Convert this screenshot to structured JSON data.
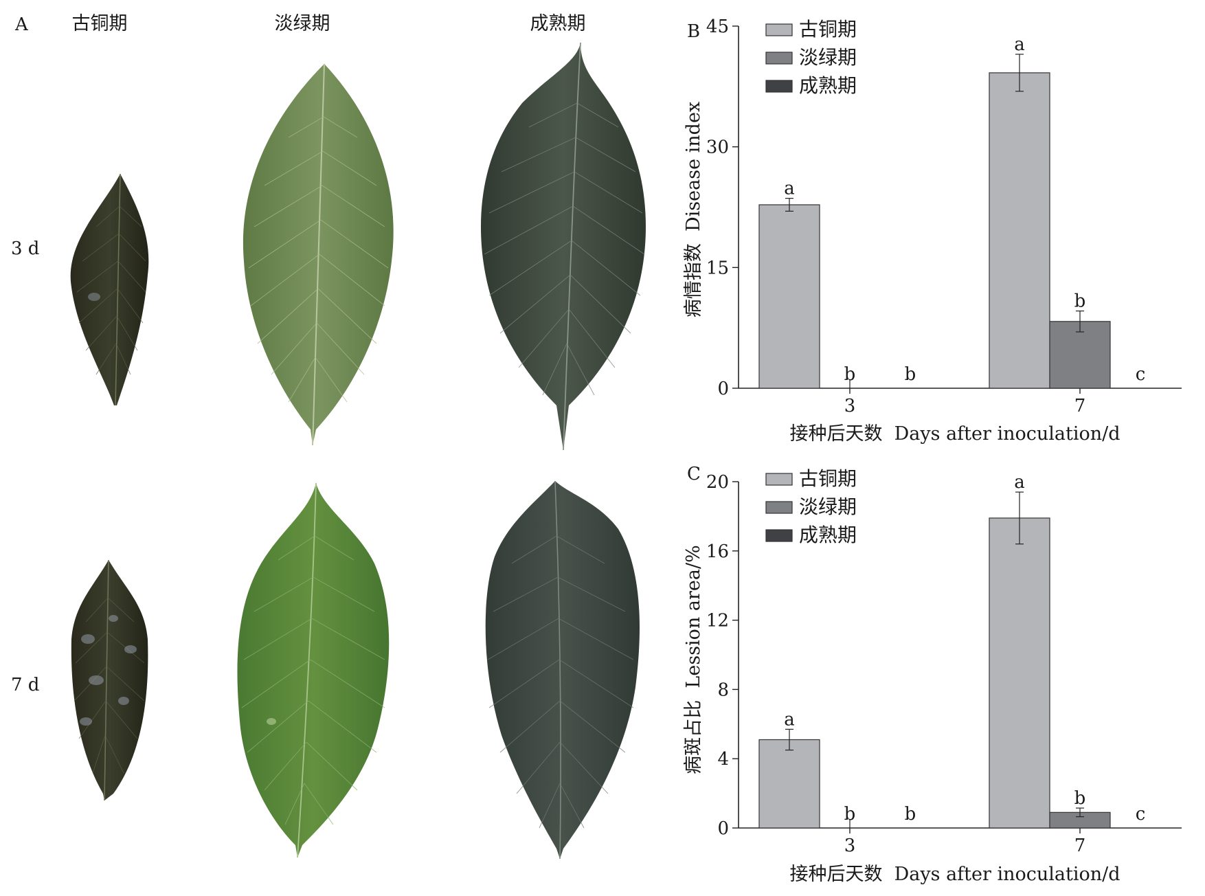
{
  "panelA": {
    "label": "A",
    "columns": [
      "古铜期",
      "淡绿期",
      "成熟期"
    ],
    "rows": [
      "3 d",
      "7 d"
    ]
  },
  "chartB_text": {
    "panel_label": "B"
  },
  "chartC_text": {
    "panel_label": "C"
  },
  "chart_data": [
    {
      "type": "bar",
      "panel": "B",
      "title": "",
      "categories": [
        "3",
        "7"
      ],
      "series": [
        {
          "name": "古铜期",
          "color": "#b4b5b8",
          "values": [
            22.8,
            39.2
          ],
          "errors": [
            0.8,
            2.3
          ],
          "letters": [
            "a",
            "a"
          ]
        },
        {
          "name": "淡绿期",
          "color": "#7f8084",
          "values": [
            0,
            8.3
          ],
          "errors": [
            0,
            1.3
          ],
          "letters": [
            "b",
            "b"
          ]
        },
        {
          "name": "成熟期",
          "color": "#404145",
          "values": [
            0,
            0
          ],
          "errors": [
            0,
            0
          ],
          "letters": [
            "b",
            "c"
          ]
        }
      ],
      "xlabel": "接种后天数  Days after inoculation/d",
      "ylabel": "病情指数  Disease index",
      "ylim": [
        0,
        45
      ],
      "yticks": [
        0,
        15,
        30,
        45
      ],
      "grid": false,
      "legend": "top-left"
    },
    {
      "type": "bar",
      "panel": "C",
      "title": "",
      "categories": [
        "3",
        "7"
      ],
      "series": [
        {
          "name": "古铜期",
          "color": "#b4b5b8",
          "values": [
            5.1,
            17.9
          ],
          "errors": [
            0.6,
            1.5
          ],
          "letters": [
            "a",
            "a"
          ]
        },
        {
          "name": "淡绿期",
          "color": "#7f8084",
          "values": [
            0,
            0.9
          ],
          "errors": [
            0,
            0.25
          ],
          "letters": [
            "b",
            "b"
          ]
        },
        {
          "name": "成熟期",
          "color": "#404145",
          "values": [
            0,
            0
          ],
          "errors": [
            0,
            0
          ],
          "letters": [
            "b",
            "c"
          ]
        }
      ],
      "xlabel": "接种后天数  Days after inoculation/d",
      "ylabel": "病斑占比  Lession area/%",
      "ylim": [
        0,
        20
      ],
      "yticks": [
        0,
        4,
        8,
        12,
        16,
        20
      ],
      "grid": false,
      "legend": "top-left"
    }
  ]
}
